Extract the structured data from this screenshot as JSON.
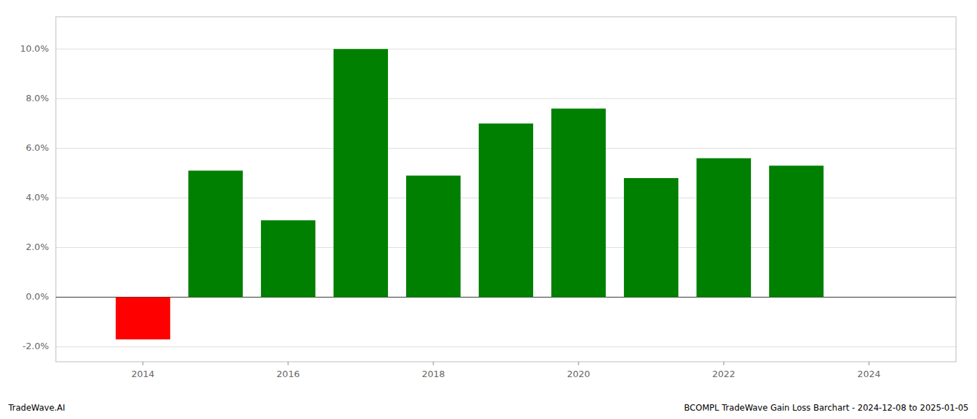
{
  "chart_data": {
    "type": "bar",
    "x": [
      2014,
      2015,
      2016,
      2017,
      2018,
      2019,
      2020,
      2021,
      2022,
      2023
    ],
    "values": [
      -0.017,
      0.051,
      0.031,
      0.1,
      0.049,
      0.07,
      0.076,
      0.048,
      0.056,
      0.053
    ],
    "colors": [
      "#ff0000",
      "#008000",
      "#008000",
      "#008000",
      "#008000",
      "#008000",
      "#008000",
      "#008000",
      "#008000",
      "#008000"
    ],
    "xlim": [
      2012.8,
      2025.2
    ],
    "xticks": [
      2014,
      2016,
      2018,
      2020,
      2022,
      2024
    ],
    "ylim": [
      -0.026,
      0.113
    ],
    "yticks": [
      {
        "value": -0.02,
        "label": "-2.0%"
      },
      {
        "value": 0.0,
        "label": "0.0%"
      },
      {
        "value": 0.02,
        "label": "2.0%"
      },
      {
        "value": 0.04,
        "label": "4.0%"
      },
      {
        "value": 0.06,
        "label": "6.0%"
      },
      {
        "value": 0.08,
        "label": "8.0%"
      },
      {
        "value": 0.1,
        "label": "10.0%"
      }
    ],
    "grid": true,
    "annotations": [
      "TradeWave.AI",
      "BCOMPL TradeWave Gain Loss Barchart - 2024-12-08 to 2025-01-05"
    ]
  }
}
